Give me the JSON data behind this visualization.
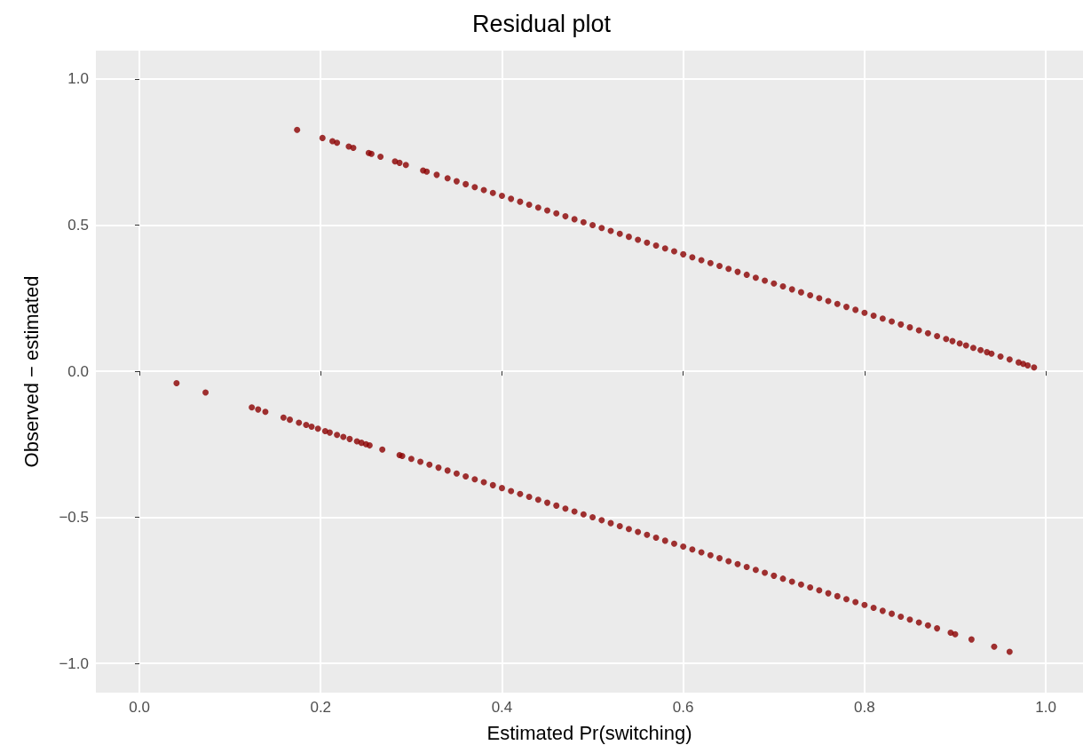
{
  "chart_data": {
    "type": "scatter",
    "title": "Residual plot",
    "xlabel": "Estimated Pr(switching)",
    "ylabel": "Observed − estimated",
    "xlim": [
      -0.048,
      1.041
    ],
    "ylim": [
      -1.1,
      1.097
    ],
    "xticks": [
      {
        "value": 0,
        "label": "0.0"
      },
      {
        "value": 0.2,
        "label": "0.2"
      },
      {
        "value": 0.4,
        "label": "0.4"
      },
      {
        "value": 0.6,
        "label": "0.6"
      },
      {
        "value": 0.8,
        "label": "0.8"
      },
      {
        "value": 1,
        "label": "1.0"
      }
    ],
    "yticks": [
      {
        "value": -1,
        "label": "−1.0"
      },
      {
        "value": -0.5,
        "label": "−0.5"
      },
      {
        "value": 0,
        "label": "0.0"
      },
      {
        "value": 0.5,
        "label": "0.5"
      },
      {
        "value": 1,
        "label": "1.0"
      }
    ],
    "grid": true,
    "marker": "circle",
    "series": [
      {
        "color": "#8b0000",
        "x": [
          0.174,
          0.202,
          0.213,
          0.218,
          0.231,
          0.236,
          0.253,
          0.256,
          0.266,
          0.282,
          0.287,
          0.294,
          0.313,
          0.317,
          0.328,
          0.34,
          0.35,
          0.36,
          0.37,
          0.38,
          0.39,
          0.4,
          0.41,
          0.42,
          0.43,
          0.44,
          0.45,
          0.46,
          0.47,
          0.48,
          0.49,
          0.5,
          0.51,
          0.52,
          0.53,
          0.54,
          0.55,
          0.56,
          0.57,
          0.58,
          0.59,
          0.6,
          0.61,
          0.62,
          0.63,
          0.64,
          0.65,
          0.66,
          0.67,
          0.68,
          0.69,
          0.7,
          0.71,
          0.72,
          0.73,
          0.74,
          0.75,
          0.76,
          0.77,
          0.78,
          0.79,
          0.8,
          0.81,
          0.82,
          0.83,
          0.84,
          0.85,
          0.86,
          0.87,
          0.88,
          0.89,
          0.897,
          0.905,
          0.912,
          0.92,
          0.928,
          0.935,
          0.94,
          0.95,
          0.96,
          0.97,
          0.975,
          0.98,
          0.987
        ],
        "values": [
          0.826,
          0.798,
          0.787,
          0.782,
          0.769,
          0.764,
          0.747,
          0.744,
          0.734,
          0.718,
          0.713,
          0.706,
          0.687,
          0.683,
          0.672,
          0.66,
          0.65,
          0.64,
          0.63,
          0.62,
          0.61,
          0.6,
          0.59,
          0.58,
          0.57,
          0.56,
          0.55,
          0.54,
          0.53,
          0.52,
          0.51,
          0.5,
          0.49,
          0.48,
          0.47,
          0.46,
          0.45,
          0.44,
          0.43,
          0.42,
          0.41,
          0.4,
          0.39,
          0.38,
          0.37,
          0.36,
          0.35,
          0.34,
          0.33,
          0.32,
          0.31,
          0.3,
          0.29,
          0.28,
          0.27,
          0.26,
          0.25,
          0.24,
          0.23,
          0.22,
          0.21,
          0.2,
          0.19,
          0.18,
          0.17,
          0.16,
          0.15,
          0.14,
          0.13,
          0.12,
          0.11,
          0.103,
          0.095,
          0.088,
          0.08,
          0.072,
          0.065,
          0.06,
          0.05,
          0.04,
          0.03,
          0.025,
          0.02,
          0.013
        ]
      },
      {
        "color": "#8b0000",
        "x": [
          0.041,
          0.073,
          0.124,
          0.131,
          0.139,
          0.159,
          0.166,
          0.176,
          0.184,
          0.19,
          0.197,
          0.205,
          0.21,
          0.218,
          0.225,
          0.232,
          0.24,
          0.245,
          0.25,
          0.254,
          0.268,
          0.287,
          0.29,
          0.3,
          0.31,
          0.32,
          0.33,
          0.34,
          0.35,
          0.36,
          0.37,
          0.38,
          0.39,
          0.4,
          0.41,
          0.42,
          0.43,
          0.44,
          0.45,
          0.46,
          0.47,
          0.48,
          0.49,
          0.5,
          0.51,
          0.52,
          0.53,
          0.54,
          0.55,
          0.56,
          0.57,
          0.58,
          0.59,
          0.6,
          0.61,
          0.62,
          0.63,
          0.64,
          0.65,
          0.66,
          0.67,
          0.68,
          0.69,
          0.7,
          0.71,
          0.72,
          0.73,
          0.74,
          0.75,
          0.76,
          0.77,
          0.78,
          0.79,
          0.8,
          0.81,
          0.82,
          0.83,
          0.84,
          0.85,
          0.86,
          0.87,
          0.88,
          0.895,
          0.9,
          0.918,
          0.943,
          0.96
        ],
        "values": [
          -0.041,
          -0.073,
          -0.124,
          -0.131,
          -0.139,
          -0.159,
          -0.166,
          -0.176,
          -0.184,
          -0.19,
          -0.197,
          -0.205,
          -0.21,
          -0.218,
          -0.225,
          -0.232,
          -0.24,
          -0.245,
          -0.25,
          -0.254,
          -0.268,
          -0.287,
          -0.29,
          -0.3,
          -0.31,
          -0.32,
          -0.33,
          -0.34,
          -0.35,
          -0.36,
          -0.37,
          -0.38,
          -0.39,
          -0.4,
          -0.41,
          -0.42,
          -0.43,
          -0.44,
          -0.45,
          -0.46,
          -0.47,
          -0.48,
          -0.49,
          -0.5,
          -0.51,
          -0.52,
          -0.53,
          -0.54,
          -0.55,
          -0.56,
          -0.57,
          -0.58,
          -0.59,
          -0.6,
          -0.61,
          -0.62,
          -0.63,
          -0.64,
          -0.65,
          -0.66,
          -0.67,
          -0.68,
          -0.69,
          -0.7,
          -0.71,
          -0.72,
          -0.73,
          -0.74,
          -0.75,
          -0.76,
          -0.77,
          -0.78,
          -0.79,
          -0.8,
          -0.81,
          -0.82,
          -0.83,
          -0.84,
          -0.85,
          -0.86,
          -0.87,
          -0.88,
          -0.895,
          -0.9,
          -0.918,
          -0.943,
          -0.96
        ]
      }
    ]
  }
}
